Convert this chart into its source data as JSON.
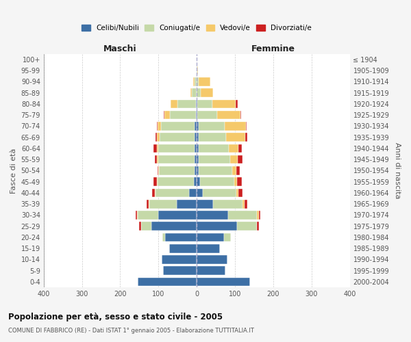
{
  "age_groups": [
    "0-4",
    "5-9",
    "10-14",
    "15-19",
    "20-24",
    "25-29",
    "30-34",
    "35-39",
    "40-44",
    "45-49",
    "50-54",
    "55-59",
    "60-64",
    "65-69",
    "70-74",
    "75-79",
    "80-84",
    "85-89",
    "90-94",
    "95-99",
    "100+"
  ],
  "birth_years": [
    "2000-2004",
    "1995-1999",
    "1990-1994",
    "1985-1989",
    "1980-1984",
    "1975-1979",
    "1970-1974",
    "1965-1969",
    "1960-1964",
    "1955-1959",
    "1950-1954",
    "1945-1949",
    "1940-1944",
    "1935-1939",
    "1930-1934",
    "1925-1929",
    "1920-1924",
    "1915-1919",
    "1910-1914",
    "1905-1909",
    "≤ 1904"
  ],
  "colors": {
    "celibi": "#3d6fa5",
    "coniugati": "#c5d9a8",
    "vedovi": "#f5c96a",
    "divorziati": "#cc2020"
  },
  "male": {
    "celibi": [
      155,
      88,
      92,
      72,
      82,
      118,
      100,
      52,
      20,
      8,
      6,
      5,
      5,
      5,
      5,
      2,
      2,
      0,
      0,
      0,
      0
    ],
    "coniugati": [
      0,
      0,
      0,
      0,
      8,
      28,
      55,
      72,
      88,
      95,
      92,
      96,
      95,
      92,
      88,
      68,
      48,
      12,
      5,
      1,
      0
    ],
    "vedovi": [
      0,
      0,
      0,
      0,
      0,
      0,
      2,
      2,
      2,
      2,
      2,
      4,
      5,
      8,
      10,
      15,
      18,
      5,
      5,
      0,
      0
    ],
    "divorziati": [
      0,
      0,
      0,
      0,
      0,
      5,
      2,
      5,
      7,
      8,
      3,
      5,
      8,
      2,
      2,
      2,
      0,
      0,
      0,
      0,
      0
    ]
  },
  "female": {
    "nubili": [
      140,
      75,
      80,
      60,
      72,
      105,
      82,
      42,
      15,
      8,
      5,
      5,
      5,
      5,
      5,
      2,
      2,
      0,
      0,
      0,
      0
    ],
    "coniugate": [
      0,
      0,
      0,
      0,
      18,
      52,
      75,
      78,
      88,
      90,
      88,
      82,
      78,
      72,
      68,
      52,
      38,
      10,
      5,
      1,
      0
    ],
    "vedove": [
      0,
      0,
      0,
      0,
      0,
      0,
      5,
      5,
      5,
      8,
      10,
      20,
      25,
      50,
      55,
      60,
      62,
      32,
      30,
      2,
      0
    ],
    "divorziate": [
      0,
      0,
      0,
      0,
      0,
      5,
      5,
      8,
      12,
      12,
      10,
      12,
      10,
      5,
      2,
      2,
      5,
      0,
      0,
      0,
      0
    ]
  },
  "xlim": 400,
  "title": "Popolazione per età, sesso e stato civile - 2005",
  "subtitle": "COMUNE DI FABBRICO (RE) - Dati ISTAT 1° gennaio 2005 - Elaborazione TUTTITALIA.IT",
  "ylabel_left": "Fasce di età",
  "ylabel_right": "Anni di nascita",
  "xlabel_left": "Maschi",
  "xlabel_right": "Femmine",
  "bg_color": "#f5f5f5",
  "plot_bg_color": "#ffffff"
}
